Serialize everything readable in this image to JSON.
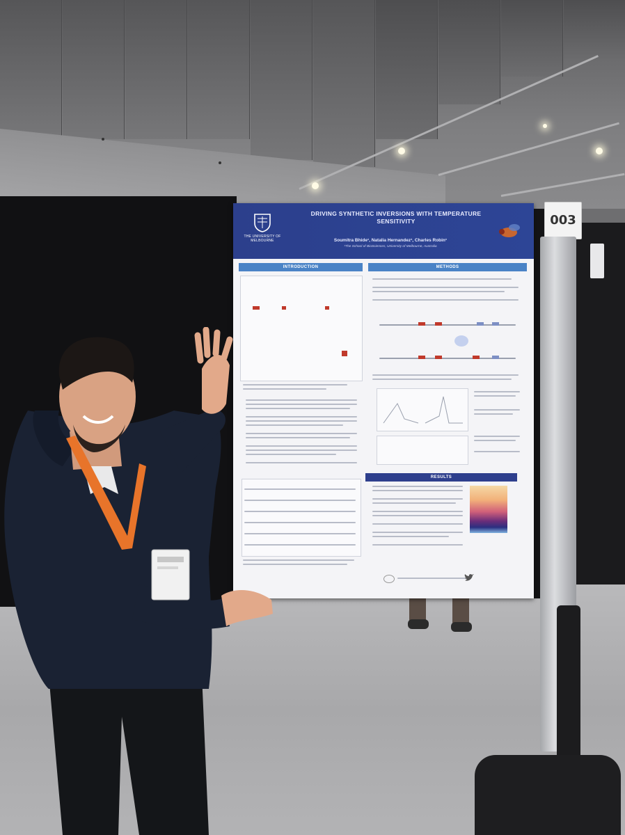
{
  "poster": {
    "university": "THE UNIVERSITY OF\nMELBOURNE",
    "title": "DRIVING SYNTHETIC INVERSIONS WITH TEMPERATURE SENSITIVITY",
    "authors": "Soumitra Bhide¹, Natalia Hernandez¹, Charles Robin¹",
    "affiliation": "¹The School of BioSciences, University of Melbourne, Australia",
    "sections": {
      "introduction": "INTRODUCTION",
      "methods": "METHODS",
      "results": "RESULTS"
    }
  },
  "stand_number": "003",
  "colors": {
    "poster_header": "#2c3f8c",
    "section_bar": "#4a83c6",
    "results_bar": "#2e3f8d",
    "booth_wall": "#111113",
    "hoodie": "#1a2233",
    "lanyard": "#e8742a"
  }
}
